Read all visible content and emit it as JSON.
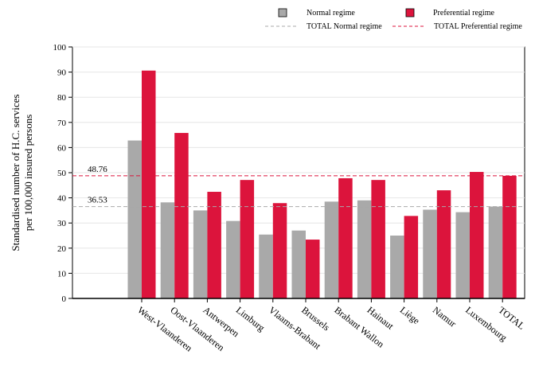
{
  "chart_data": {
    "type": "bar",
    "ylabel_line1": "Standardised number of H.C. services",
    "ylabel_line2": "per 100,000 insured persons",
    "ylim": [
      0,
      100
    ],
    "yticks": [
      0,
      10,
      20,
      30,
      40,
      50,
      60,
      70,
      80,
      90,
      100
    ],
    "grid": true,
    "legend_position": "top-right",
    "categories": [
      "West-Vlaanderen",
      "Oost-Vlaanderen",
      "Antwerpen",
      "Limburg",
      "Vlaams-Brabant",
      "Brussels",
      "Brabant Wallon",
      "Hainaut",
      "Liège",
      "Namur",
      "Luxembourg",
      "TOTAL"
    ],
    "series": [
      {
        "name": "Normal regime",
        "color": "#a9a9a9",
        "values": [
          62.8,
          38.2,
          35.0,
          30.8,
          25.4,
          27.0,
          38.5,
          39.0,
          25.0,
          35.3,
          34.3,
          36.53
        ]
      },
      {
        "name": "Preferential regime",
        "color": "#dc143c",
        "values": [
          90.6,
          65.8,
          42.4,
          47.1,
          37.9,
          23.4,
          47.8,
          47.1,
          32.8,
          43.0,
          50.3,
          48.76
        ]
      }
    ],
    "reference_lines": [
      {
        "name": "TOTAL Normal regime",
        "value": 36.53,
        "label": "36.53",
        "color": "#a9a9a9"
      },
      {
        "name": "TOTAL Preferential regime",
        "value": 48.76,
        "label": "48.76",
        "color": "#dc143c"
      }
    ]
  }
}
